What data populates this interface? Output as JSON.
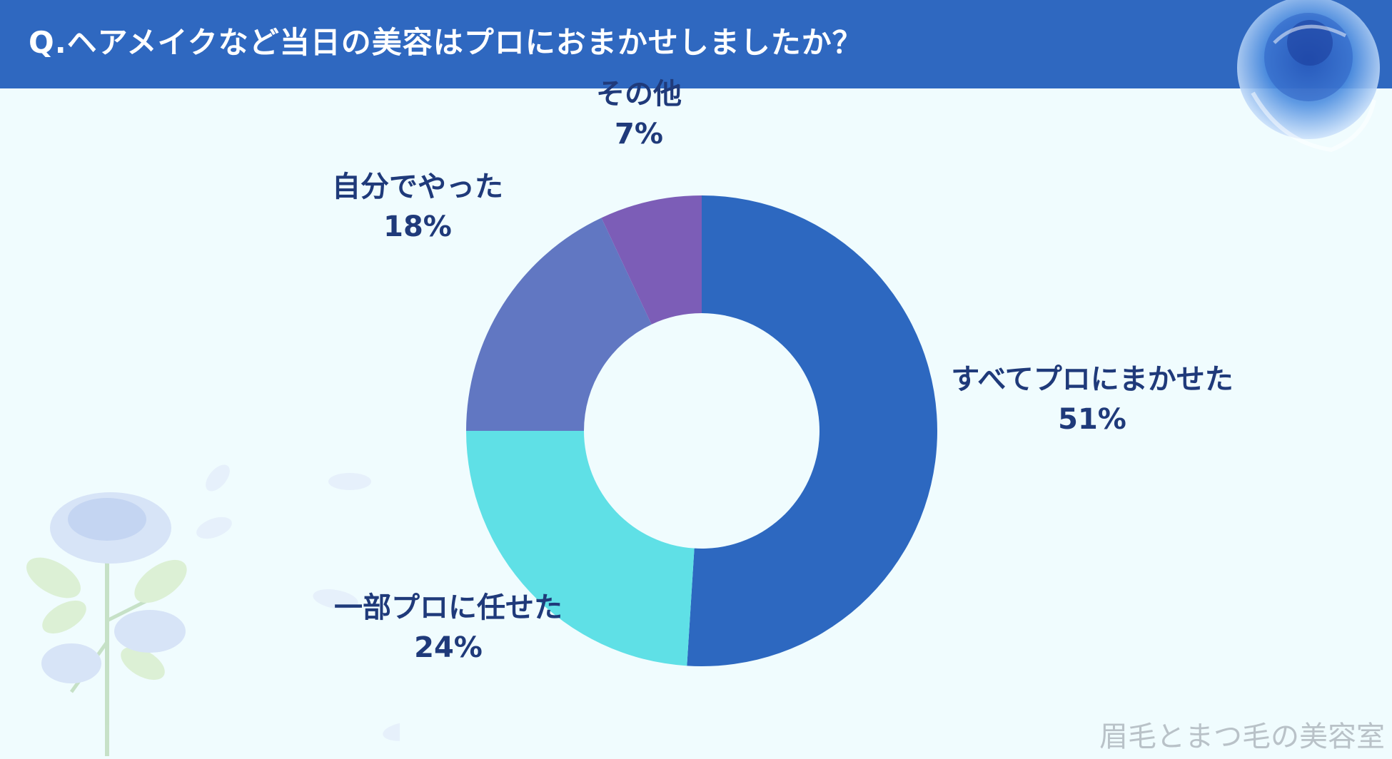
{
  "header": {
    "title": "Q.ヘアメイクなど当日の美容はプロにおまかせしましたか？"
  },
  "watermark": {
    "text": "眉毛とまつ毛の美容室"
  },
  "chart_data": {
    "type": "pie",
    "style": "donut",
    "title": "Q.ヘアメイクなど当日の美容はプロにおまかせしましたか？",
    "categories": [
      "すべてプロにまかせた",
      "一部プロに任せた",
      "自分でやった",
      "その他"
    ],
    "values": [
      51,
      24,
      18,
      7
    ],
    "value_labels": [
      "51%",
      "24%",
      "18%",
      "7%"
    ],
    "colors": [
      "#2d68c0",
      "#5fe0e6",
      "#6177c2",
      "#7c5db7"
    ],
    "legend": "none",
    "start_angle": "top",
    "direction": "clockwise"
  }
}
